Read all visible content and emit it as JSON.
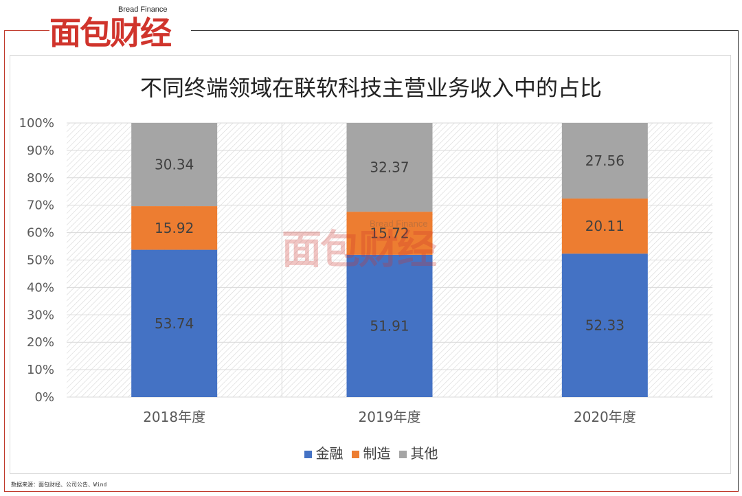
{
  "logo": {
    "en": "Bread Finance",
    "cn": "面包财经"
  },
  "source": "数据来源：面包财经、公司公告、Wind",
  "colors": {
    "金融": "#4472c4",
    "制造": "#ed7d31",
    "其他": "#a5a5a5"
  },
  "chart_data": {
    "type": "bar",
    "stacked": true,
    "percent_stacked": true,
    "title": "不同终端领域在联软科技主营业务收入中的占比",
    "categories": [
      "2018年度",
      "2019年度",
      "2020年度"
    ],
    "series": [
      {
        "name": "金融",
        "values": [
          53.74,
          51.91,
          52.33
        ]
      },
      {
        "name": "制造",
        "values": [
          15.92,
          15.72,
          20.11
        ]
      },
      {
        "name": "其他",
        "values": [
          30.34,
          32.37,
          27.56
        ]
      }
    ],
    "ylim": [
      0,
      100
    ],
    "yticks": [
      "0%",
      "10%",
      "20%",
      "30%",
      "40%",
      "50%",
      "60%",
      "70%",
      "80%",
      "90%",
      "100%"
    ],
    "legend": "bottom"
  }
}
